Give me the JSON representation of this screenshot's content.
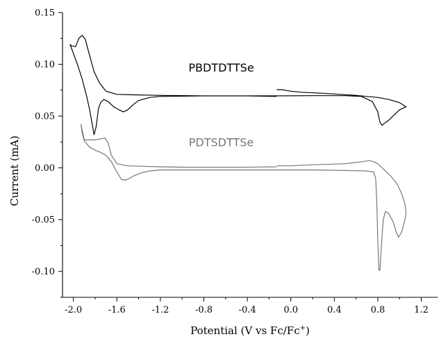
{
  "chart_data": {
    "type": "line",
    "title": "",
    "xlabel": "Potential (V vs Fc/Fc",
    "xlabel_superscript": "+",
    "xlabel_suffix": ")",
    "ylabel": "Current (mA)",
    "xlim": [
      -2.1,
      1.35
    ],
    "ylim": [
      -0.125,
      0.15
    ],
    "xticks": [
      -2.0,
      -1.6,
      -1.2,
      -0.8,
      -0.4,
      0.0,
      0.4,
      0.8,
      1.2
    ],
    "xtick_labels": [
      "-2.0",
      "-1.6",
      "-1.2",
      "-0.8",
      "-0.4",
      "0.0",
      "0.4",
      "0.8",
      "1.2"
    ],
    "yticks": [
      -0.1,
      -0.05,
      0.0,
      0.05,
      0.1,
      0.15
    ],
    "ytick_labels": [
      "-0.10",
      "-0.05",
      "0.00",
      "0.05",
      "0.10",
      "0.15"
    ],
    "grid": false,
    "series": [
      {
        "name": "PBDTDTTSe",
        "color": "#000000",
        "label_at": [
          -0.64,
          0.093
        ],
        "points": [
          [
            -0.13,
            0.069
          ],
          [
            -0.4,
            0.0695
          ],
          [
            -0.8,
            0.0695
          ],
          [
            -1.2,
            0.07
          ],
          [
            -1.45,
            0.0705
          ],
          [
            -1.6,
            0.071
          ],
          [
            -1.7,
            0.074
          ],
          [
            -1.76,
            0.082
          ],
          [
            -1.81,
            0.093
          ],
          [
            -1.86,
            0.112
          ],
          [
            -1.89,
            0.124
          ],
          [
            -1.92,
            0.128
          ],
          [
            -1.95,
            0.125
          ],
          [
            -1.98,
            0.117
          ],
          [
            -2.02,
            0.118
          ],
          [
            -2.03,
            0.119
          ],
          [
            -1.96,
            0.099
          ],
          [
            -1.92,
            0.086
          ],
          [
            -1.88,
            0.07
          ],
          [
            -1.85,
            0.056
          ],
          [
            -1.82,
            0.038
          ],
          [
            -1.81,
            0.032
          ],
          [
            -1.79,
            0.04
          ],
          [
            -1.77,
            0.057
          ],
          [
            -1.75,
            0.063
          ],
          [
            -1.72,
            0.066
          ],
          [
            -1.68,
            0.064
          ],
          [
            -1.63,
            0.059
          ],
          [
            -1.58,
            0.056
          ],
          [
            -1.54,
            0.054
          ],
          [
            -1.5,
            0.056
          ],
          [
            -1.45,
            0.061
          ],
          [
            -1.4,
            0.065
          ],
          [
            -1.3,
            0.068
          ],
          [
            -1.2,
            0.069
          ],
          [
            -0.8,
            0.0695
          ],
          [
            -0.4,
            0.0695
          ],
          [
            -0.13,
            0.0695
          ],
          [
            0.2,
            0.0697
          ],
          [
            0.5,
            0.0697
          ],
          [
            0.65,
            0.069
          ],
          [
            0.75,
            0.064
          ],
          [
            0.8,
            0.054
          ],
          [
            0.82,
            0.044
          ],
          [
            0.84,
            0.041
          ],
          [
            0.86,
            0.043
          ],
          [
            0.9,
            0.046
          ],
          [
            0.95,
            0.051
          ],
          [
            1.0,
            0.056
          ],
          [
            1.04,
            0.058
          ],
          [
            1.06,
            0.059
          ],
          [
            1.0,
            0.063
          ],
          [
            0.9,
            0.066
          ],
          [
            0.8,
            0.068
          ],
          [
            0.6,
            0.07
          ],
          [
            0.3,
            0.072
          ],
          [
            0.1,
            0.073
          ],
          [
            0.0,
            0.074
          ],
          [
            -0.08,
            0.0755
          ],
          [
            -0.13,
            0.0755
          ]
        ]
      },
      {
        "name": "PDTSDTTSe",
        "color": "#777777",
        "label_at": [
          -0.64,
          0.021
        ],
        "points": [
          [
            -0.13,
            0.001
          ],
          [
            -0.5,
            0.0005
          ],
          [
            -0.9,
            0.0005
          ],
          [
            -1.2,
            0.001
          ],
          [
            -1.5,
            0.002
          ],
          [
            -1.6,
            0.004
          ],
          [
            -1.65,
            0.012
          ],
          [
            -1.68,
            0.024
          ],
          [
            -1.71,
            0.029
          ],
          [
            -1.75,
            0.028
          ],
          [
            -1.8,
            0.027
          ],
          [
            -1.86,
            0.027
          ],
          [
            -1.9,
            0.027
          ],
          [
            -1.93,
            0.042
          ],
          [
            -1.92,
            0.034
          ],
          [
            -1.9,
            0.026
          ],
          [
            -1.85,
            0.02
          ],
          [
            -1.8,
            0.017
          ],
          [
            -1.75,
            0.015
          ],
          [
            -1.7,
            0.012
          ],
          [
            -1.65,
            0.006
          ],
          [
            -1.6,
            -0.004
          ],
          [
            -1.56,
            -0.011
          ],
          [
            -1.53,
            -0.012
          ],
          [
            -1.5,
            -0.011
          ],
          [
            -1.45,
            -0.008
          ],
          [
            -1.38,
            -0.005
          ],
          [
            -1.3,
            -0.003
          ],
          [
            -1.2,
            -0.002
          ],
          [
            -0.8,
            -0.002
          ],
          [
            -0.4,
            -0.002
          ],
          [
            -0.13,
            -0.002
          ],
          [
            0.2,
            -0.002
          ],
          [
            0.5,
            -0.0025
          ],
          [
            0.7,
            -0.003
          ],
          [
            0.76,
            -0.004
          ],
          [
            0.78,
            -0.01
          ],
          [
            0.79,
            -0.03
          ],
          [
            0.8,
            -0.07
          ],
          [
            0.81,
            -0.099
          ],
          [
            0.82,
            -0.099
          ],
          [
            0.83,
            -0.08
          ],
          [
            0.85,
            -0.05
          ],
          [
            0.87,
            -0.042
          ],
          [
            0.9,
            -0.044
          ],
          [
            0.94,
            -0.052
          ],
          [
            0.97,
            -0.062
          ],
          [
            0.99,
            -0.067
          ],
          [
            1.02,
            -0.062
          ],
          [
            1.05,
            -0.05
          ],
          [
            1.06,
            -0.044
          ],
          [
            1.05,
            -0.035
          ],
          [
            1.02,
            -0.025
          ],
          [
            0.98,
            -0.016
          ],
          [
            0.92,
            -0.008
          ],
          [
            0.87,
            -0.003
          ],
          [
            0.83,
            0.001
          ],
          [
            0.8,
            0.004
          ],
          [
            0.76,
            0.006
          ],
          [
            0.72,
            0.007
          ],
          [
            0.66,
            0.006
          ],
          [
            0.5,
            0.004
          ],
          [
            0.2,
            0.003
          ],
          [
            0.0,
            0.002
          ],
          [
            -0.13,
            0.002
          ]
        ]
      }
    ]
  }
}
